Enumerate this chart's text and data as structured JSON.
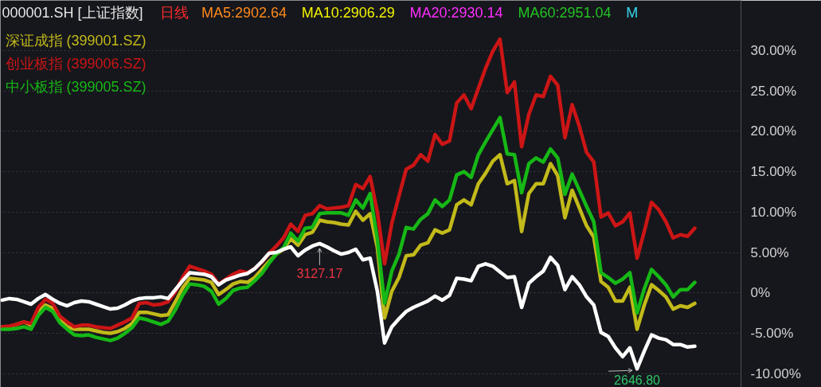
{
  "chart_data": {
    "type": "line",
    "title": "000001.SH [上证指数]",
    "subtitle": "日线",
    "annotations": [
      "MA5:2902.64",
      "MA10:2906.29",
      "MA20:2930.14",
      "MA60:2951.04",
      "M",
      {
        "text": "3127.17",
        "y": 6.1
      },
      {
        "text": "2646.80",
        "y": -9.4
      }
    ],
    "categories": [
      null,
      null,
      null,
      null,
      null,
      null,
      null,
      null,
      null,
      null,
      null,
      null,
      null,
      null,
      null,
      null,
      null,
      null,
      null,
      null,
      null,
      null,
      null,
      null,
      null,
      null,
      null,
      null,
      null,
      null,
      null,
      null,
      null,
      null,
      null,
      null,
      null,
      null,
      null,
      null,
      null,
      null,
      null,
      null,
      null,
      null,
      null,
      null,
      null,
      null,
      null,
      null,
      null,
      null,
      null,
      null,
      null,
      null,
      null,
      null,
      null,
      null,
      null,
      null,
      null,
      null,
      null,
      null,
      null,
      null,
      null,
      null,
      null,
      null,
      null,
      null,
      null,
      null,
      null,
      null,
      null,
      null,
      null,
      null,
      null,
      null,
      null,
      null,
      null,
      null,
      null,
      null,
      null,
      null,
      null,
      null,
      null
    ],
    "series": [
      {
        "name": "深证成指 (399001.SZ)",
        "color": "#c2ba1a",
        "values": [
          -4.2,
          -4.2,
          -3.9,
          -3.6,
          -4.0,
          -2.3,
          -1.5,
          -1.9,
          -3.3,
          -4.2,
          -4.5,
          -4.5,
          -4.5,
          -4.7,
          -4.9,
          -5.0,
          -4.8,
          -4.4,
          -3.8,
          -2.4,
          -2.4,
          -2.6,
          -2.8,
          -2.7,
          -1.1,
          0.6,
          1.8,
          1.7,
          1.6,
          1.3,
          -0.2,
          0.4,
          1.1,
          1.4,
          1.3,
          1.9,
          2.9,
          3.9,
          4.8,
          5.4,
          6.7,
          5.9,
          7.2,
          7.5,
          9.0,
          8.8,
          8.7,
          8.5,
          8.4,
          10.1,
          9.0,
          9.8,
          5.6,
          -3.1,
          0.2,
          1.9,
          4.6,
          4.7,
          5.9,
          6.2,
          7.8,
          7.4,
          7.8,
          10.9,
          11.5,
          10.9,
          13.5,
          14.8,
          16.3,
          17.1,
          13.5,
          13.9,
          7.6,
          12.3,
          13.5,
          13.5,
          16.0,
          14.5,
          9.3,
          12.7,
          10.5,
          8.3,
          6.9,
          1.4,
          0.7,
          -1.0,
          -1.0,
          0.7,
          -4.5,
          -1.5,
          1.0,
          0.3,
          -0.5,
          -2.0,
          -1.6,
          -1.8,
          -1.3
        ]
      },
      {
        "name": "创业板指 (399006.SZ)",
        "color": "#cc1515",
        "values": [
          -4.2,
          -4.1,
          -3.9,
          -3.6,
          -3.8,
          -1.8,
          -0.8,
          -1.3,
          -2.9,
          -3.6,
          -4.2,
          -4.0,
          -4.0,
          -4.2,
          -4.3,
          -4.4,
          -4.0,
          -3.6,
          -3.1,
          -1.3,
          -1.2,
          -1.5,
          -1.4,
          -1.1,
          0.1,
          1.9,
          3.3,
          3.0,
          2.7,
          2.3,
          1.1,
          1.7,
          2.3,
          2.7,
          2.5,
          3.0,
          3.8,
          4.9,
          5.8,
          6.8,
          8.5,
          7.6,
          9.6,
          9.8,
          10.8,
          10.4,
          10.5,
          10.6,
          10.8,
          13.4,
          12.9,
          14.4,
          10.0,
          3.6,
          8.6,
          12.0,
          15.3,
          15.8,
          17.1,
          16.3,
          19.6,
          18.4,
          18.8,
          23.5,
          24.5,
          22.8,
          25.3,
          27.8,
          29.9,
          31.4,
          24.8,
          26.1,
          18.1,
          22.1,
          24.5,
          24.3,
          26.8,
          25.7,
          19.2,
          23.3,
          20.6,
          17.4,
          16.2,
          9.4,
          9.9,
          8.3,
          8.8,
          9.9,
          4.3,
          7.6,
          11.2,
          10.3,
          8.8,
          6.8,
          7.2,
          7.0,
          8.0
        ]
      },
      {
        "name": "中小板指 (399005.SZ)",
        "color": "#16b816",
        "values": [
          -4.5,
          -4.5,
          -4.4,
          -4.2,
          -4.5,
          -2.8,
          -1.8,
          -2.3,
          -3.7,
          -4.5,
          -5.2,
          -5.3,
          -5.2,
          -5.5,
          -5.7,
          -5.9,
          -5.6,
          -5.0,
          -4.3,
          -3.1,
          -3.3,
          -3.6,
          -3.9,
          -3.5,
          -2.1,
          -0.3,
          1.1,
          1.0,
          0.8,
          0.2,
          -1.4,
          -0.7,
          0.3,
          0.6,
          0.7,
          1.5,
          2.4,
          3.7,
          4.8,
          5.6,
          7.4,
          6.4,
          8.0,
          8.1,
          9.8,
          9.9,
          9.9,
          9.9,
          9.6,
          11.5,
          10.5,
          12.3,
          6.6,
          -1.3,
          2.7,
          4.8,
          8.1,
          7.9,
          9.1,
          9.8,
          11.5,
          10.7,
          11.5,
          14.6,
          15.0,
          14.3,
          17.1,
          18.7,
          20.2,
          21.7,
          17.2,
          17.1,
          12.4,
          16.0,
          16.7,
          16.2,
          17.8,
          16.7,
          12.2,
          14.7,
          12.7,
          10.7,
          8.8,
          2.5,
          1.9,
          1.2,
          1.7,
          2.5,
          -2.5,
          0.5,
          2.9,
          2.0,
          1.0,
          -0.5,
          0.4,
          0.4,
          1.3
        ]
      },
      {
        "color": "#ffffff",
        "values": [
          -0.9,
          -0.7,
          -0.8,
          -1.1,
          -1.4,
          -0.7,
          -0.2,
          -0.8,
          -1.3,
          -1.6,
          -1.2,
          -1.0,
          -1.1,
          -1.4,
          -1.7,
          -2.0,
          -1.9,
          -1.5,
          -1.0,
          -0.7,
          -0.6,
          -0.6,
          -0.5,
          -0.7,
          0.4,
          1.5,
          2.5,
          2.4,
          2.3,
          2.0,
          1.0,
          1.6,
          1.9,
          2.2,
          2.4,
          3.0,
          3.9,
          4.9,
          5.0,
          5.4,
          5.7,
          4.6,
          5.3,
          5.8,
          6.1,
          5.7,
          5.2,
          4.8,
          5.0,
          5.4,
          4.1,
          4.3,
          0.2,
          -6.2,
          -4.2,
          -3.2,
          -2.3,
          -1.8,
          -1.4,
          -1.0,
          -0.4,
          -0.9,
          -0.3,
          1.8,
          1.7,
          1.5,
          3.3,
          3.6,
          3.3,
          2.6,
          1.9,
          2.0,
          -1.8,
          1.2,
          2.0,
          2.7,
          4.4,
          3.4,
          0.4,
          2.0,
          1.0,
          -0.5,
          -1.5,
          -4.9,
          -5.4,
          -6.8,
          -7.9,
          -6.8,
          -9.4,
          -7.2,
          -5.2,
          -5.6,
          -5.8,
          -6.4,
          -6.4,
          -6.7,
          -6.6
        ]
      }
    ],
    "ylim": [
      -11.7,
      36.2
    ],
    "yticks": [
      {
        "value": -10,
        "label": "-10.00%"
      },
      {
        "value": -5,
        "label": "-5.00%"
      },
      {
        "value": 0,
        "label": "0%"
      },
      {
        "value": 5,
        "label": "5.00%"
      },
      {
        "value": 10,
        "label": "10.00%"
      },
      {
        "value": 15,
        "label": "15.00%"
      },
      {
        "value": 20,
        "label": "20.00%"
      },
      {
        "value": 25,
        "label": "25.00%"
      },
      {
        "value": 30,
        "label": "30.00%"
      }
    ],
    "grid": "y",
    "legend": "top left",
    "line_style": "solid",
    "tick_labels": "y"
  }
}
